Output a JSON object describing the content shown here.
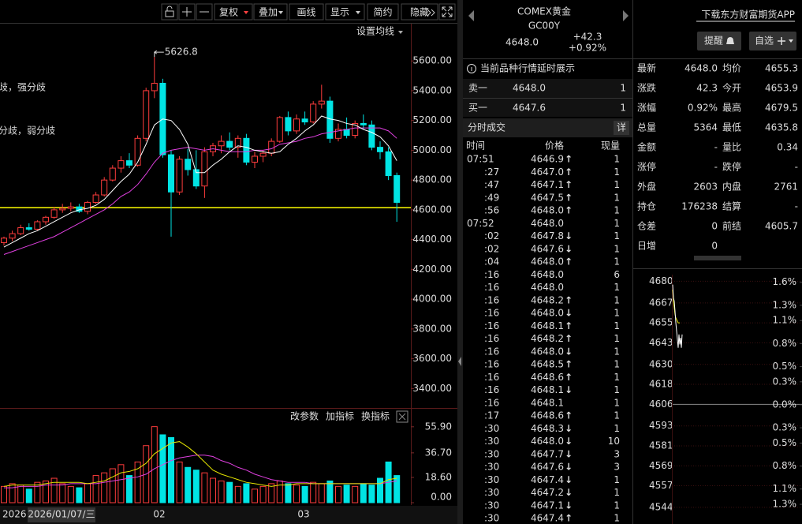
{
  "toolbar": [
    "复权",
    "叠加",
    "画线",
    "显示",
    "简约",
    "隐藏"
  ],
  "kline": {
    "ma_setting": "设置均线",
    "annotations": [
      "歧，强分歧",
      "分歧，弱分歧"
    ],
    "peak_label": 5626.8,
    "ylim": [
      3280,
      5850
    ],
    "yticks": [
      {
        "value": 5600,
        "label": "5600.00"
      },
      {
        "value": 5400,
        "label": "5400.00"
      },
      {
        "value": 5200,
        "label": "5200.00"
      },
      {
        "value": 5000,
        "label": "5000.00"
      },
      {
        "value": 4800,
        "label": "4800.00"
      },
      {
        "value": 4600,
        "label": "4600.00"
      },
      {
        "value": 4400,
        "label": "4400.00"
      },
      {
        "value": 4200,
        "label": "4200.00"
      },
      {
        "value": 4000,
        "label": "4000.00"
      },
      {
        "value": 3800,
        "label": "3800.00"
      },
      {
        "value": 3600,
        "label": "3600.00"
      },
      {
        "value": 3400,
        "label": "3400.00"
      }
    ],
    "ref_line": 4615,
    "up_color": "#ff3c3c",
    "down_color": "#00e4e4",
    "candles": [
      {
        "o": 4380,
        "h": 4420,
        "l": 4360,
        "c": 4410
      },
      {
        "o": 4410,
        "h": 4460,
        "l": 4390,
        "c": 4440
      },
      {
        "o": 4440,
        "h": 4500,
        "l": 4430,
        "c": 4480
      },
      {
        "o": 4480,
        "h": 4510,
        "l": 4460,
        "c": 4470
      },
      {
        "o": 4470,
        "h": 4530,
        "l": 4460,
        "c": 4520
      },
      {
        "o": 4520,
        "h": 4560,
        "l": 4500,
        "c": 4550
      },
      {
        "o": 4550,
        "h": 4620,
        "l": 4540,
        "c": 4600
      },
      {
        "o": 4600,
        "h": 4640,
        "l": 4580,
        "c": 4610
      },
      {
        "o": 4610,
        "h": 4650,
        "l": 4590,
        "c": 4620
      },
      {
        "o": 4620,
        "h": 4640,
        "l": 4580,
        "c": 4590
      },
      {
        "o": 4590,
        "h": 4660,
        "l": 4570,
        "c": 4650
      },
      {
        "o": 4650,
        "h": 4720,
        "l": 4640,
        "c": 4700
      },
      {
        "o": 4700,
        "h": 4820,
        "l": 4690,
        "c": 4800
      },
      {
        "o": 4800,
        "h": 4900,
        "l": 4790,
        "c": 4880
      },
      {
        "o": 4880,
        "h": 4960,
        "l": 4850,
        "c": 4930
      },
      {
        "o": 4930,
        "h": 4980,
        "l": 4880,
        "c": 4900
      },
      {
        "o": 4900,
        "h": 5100,
        "l": 4890,
        "c": 5080
      },
      {
        "o": 5080,
        "h": 5420,
        "l": 5060,
        "c": 5400
      },
      {
        "o": 5400,
        "h": 5626.8,
        "l": 5350,
        "c": 5450
      },
      {
        "o": 5450,
        "h": 5480,
        "l": 4950,
        "c": 4970
      },
      {
        "o": 4970,
        "h": 5000,
        "l": 4420,
        "c": 4720
      },
      {
        "o": 4720,
        "h": 4960,
        "l": 4700,
        "c": 4940
      },
      {
        "o": 4940,
        "h": 5010,
        "l": 4830,
        "c": 4870
      },
      {
        "o": 4870,
        "h": 5000,
        "l": 4740,
        "c": 4760
      },
      {
        "o": 4760,
        "h": 5020,
        "l": 4680,
        "c": 4990
      },
      {
        "o": 4990,
        "h": 5050,
        "l": 4960,
        "c": 5030
      },
      {
        "o": 5030,
        "h": 5100,
        "l": 4980,
        "c": 5060
      },
      {
        "o": 5060,
        "h": 5120,
        "l": 5000,
        "c": 5020
      },
      {
        "o": 5020,
        "h": 5100,
        "l": 4950,
        "c": 5080
      },
      {
        "o": 5080,
        "h": 5110,
        "l": 4900,
        "c": 4920
      },
      {
        "o": 4920,
        "h": 4990,
        "l": 4880,
        "c": 4960
      },
      {
        "o": 4960,
        "h": 5000,
        "l": 4920,
        "c": 4980
      },
      {
        "o": 4980,
        "h": 5080,
        "l": 4960,
        "c": 5060
      },
      {
        "o": 5060,
        "h": 5230,
        "l": 5050,
        "c": 5220
      },
      {
        "o": 5220,
        "h": 5260,
        "l": 5100,
        "c": 5130
      },
      {
        "o": 5130,
        "h": 5240,
        "l": 5110,
        "c": 5210
      },
      {
        "o": 5210,
        "h": 5260,
        "l": 5170,
        "c": 5190
      },
      {
        "o": 5190,
        "h": 5330,
        "l": 5180,
        "c": 5310
      },
      {
        "o": 5310,
        "h": 5440,
        "l": 5280,
        "c": 5330
      },
      {
        "o": 5330,
        "h": 5360,
        "l": 5050,
        "c": 5080
      },
      {
        "o": 5080,
        "h": 5180,
        "l": 5060,
        "c": 5140
      },
      {
        "o": 5140,
        "h": 5220,
        "l": 5080,
        "c": 5100
      },
      {
        "o": 5100,
        "h": 5200,
        "l": 5080,
        "c": 5180
      },
      {
        "o": 5180,
        "h": 5240,
        "l": 5140,
        "c": 5170
      },
      {
        "o": 5170,
        "h": 5200,
        "l": 5000,
        "c": 5020
      },
      {
        "o": 5020,
        "h": 5060,
        "l": 4940,
        "c": 4990
      },
      {
        "o": 4990,
        "h": 5020,
        "l": 4800,
        "c": 4830
      },
      {
        "o": 4830,
        "h": 4850,
        "l": 4520,
        "c": 4650
      }
    ],
    "ma5": [
      4350,
      4380,
      4410,
      4440,
      4460,
      4490,
      4520,
      4550,
      4580,
      4600,
      4610,
      4630,
      4670,
      4730,
      4790,
      4840,
      4920,
      5040,
      5170,
      5210,
      5200,
      5140,
      5040,
      4850,
      4850,
      4900,
      4940,
      4990,
      5030,
      5020,
      5000,
      4990,
      4980,
      4990,
      5040,
      5080,
      5130,
      5170,
      5230,
      5210,
      5200,
      5180,
      5170,
      5140,
      5120,
      5090,
      5030,
      4930
    ],
    "ma10": [
      4300,
      4320,
      4340,
      4360,
      4380,
      4400,
      4420,
      4450,
      4480,
      4510,
      4540,
      4570,
      4600,
      4640,
      4690,
      4720,
      4770,
      4840,
      4920,
      4980,
      5000,
      5010,
      5020,
      5010,
      5000,
      5010,
      5000,
      4990,
      4990,
      4990,
      5000,
      5000,
      5010,
      5040,
      5050,
      5060,
      5080,
      5090,
      5110,
      5120,
      5130,
      5140,
      5150,
      5150,
      5150,
      5150,
      5130,
      5080
    ],
    "ma5_color": "#ffffff",
    "ma10_color": "#e040e0"
  },
  "volume": {
    "tools": [
      "改参数",
      "加指标",
      "换指标"
    ],
    "ylim": [
      0,
      68
    ],
    "yticks": [
      {
        "value": 55.9,
        "label": "55.90"
      },
      {
        "value": 36.7,
        "label": "36.70"
      },
      {
        "value": 18.6,
        "label": "18.60"
      },
      {
        "value": 0,
        "label": "0.00"
      }
    ],
    "values": [
      12,
      14,
      13,
      10,
      15,
      16,
      18,
      14,
      12,
      11,
      14,
      20,
      22,
      25,
      28,
      20,
      30,
      42,
      56,
      50,
      48,
      30,
      26,
      24,
      22,
      18,
      16,
      15,
      12,
      14,
      10,
      12,
      14,
      16,
      14,
      13,
      12,
      15,
      14,
      16,
      12,
      13,
      12,
      14,
      13,
      18,
      30,
      20
    ],
    "ma5": [
      12,
      13,
      13,
      13,
      13,
      14,
      15,
      15,
      15,
      15,
      14,
      15,
      16,
      19,
      22,
      23,
      25,
      29,
      36,
      40,
      44,
      45,
      41,
      36,
      30,
      24,
      21,
      19,
      17,
      15,
      14,
      13,
      12,
      13,
      13,
      14,
      14,
      14,
      14,
      14,
      14,
      14,
      14,
      14,
      14,
      14,
      17,
      18
    ],
    "ma10": [
      11,
      11,
      12,
      12,
      12,
      13,
      13,
      13,
      14,
      14,
      14,
      14,
      15,
      16,
      17,
      18,
      19,
      21,
      25,
      28,
      31,
      33,
      34,
      35,
      35,
      34,
      31,
      29,
      26,
      24,
      21,
      19,
      17,
      16,
      15,
      15,
      15,
      14,
      14,
      14,
      14,
      14,
      14,
      14,
      14,
      14,
      15,
      16
    ],
    "ma5_color": "#e6e600",
    "ma10_color": "#e040e0"
  },
  "x_labels": [
    "2026",
    "2026/01/07/三",
    "02",
    "03"
  ],
  "quote": {
    "name": "COMEX黄金",
    "code": "GC00Y",
    "price": "4648.0",
    "change": "+42.3",
    "pct": "+0.92%",
    "notice": "当前品种行情延时展示",
    "ask_label": "卖一",
    "ask": "4648.0",
    "ask_vol": 1,
    "bid_label": "买一",
    "bid": "4647.6",
    "bid_vol": 1
  },
  "trades": {
    "title": "分时成交",
    "detail": "详",
    "columns": [
      "时间",
      "价格",
      "现量"
    ],
    "rows": [
      {
        "time": "07:51",
        "price": "4646.9",
        "arrow": "↑",
        "vol": 1
      },
      {
        "time": ":27",
        "price": "4647.0",
        "arrow": "↑",
        "vol": 1
      },
      {
        "time": ":47",
        "price": "4647.1",
        "arrow": "↑",
        "vol": 1
      },
      {
        "time": ":49",
        "price": "4647.5",
        "arrow": "↑",
        "vol": 1
      },
      {
        "time": ":56",
        "price": "4648.0",
        "arrow": "↑",
        "vol": 1
      },
      {
        "time": "07:52",
        "price": "4648.0",
        "vol": 1
      },
      {
        "time": ":02",
        "price": "4647.8",
        "arrow": "↓",
        "vol": 1
      },
      {
        "time": ":02",
        "price": "4647.6",
        "arrow": "↓",
        "vol": 1
      },
      {
        "time": ":04",
        "price": "4648.0",
        "arrow": "↑",
        "vol": 1
      },
      {
        "time": ":16",
        "price": "4648.0",
        "vol": 6
      },
      {
        "time": ":16",
        "price": "4648.0",
        "vol": 1
      },
      {
        "time": ":16",
        "price": "4648.2",
        "arrow": "↑",
        "vol": 1
      },
      {
        "time": ":16",
        "price": "4648.0",
        "arrow": "↓",
        "vol": 1
      },
      {
        "time": ":16",
        "price": "4648.1",
        "arrow": "↑",
        "vol": 1
      },
      {
        "time": ":16",
        "price": "4648.2",
        "arrow": "↑",
        "vol": 1
      },
      {
        "time": ":16",
        "price": "4648.0",
        "arrow": "↓",
        "vol": 1
      },
      {
        "time": ":16",
        "price": "4648.5",
        "arrow": "↑",
        "vol": 1
      },
      {
        "time": ":16",
        "price": "4648.6",
        "arrow": "↑",
        "vol": 1
      },
      {
        "time": ":16",
        "price": "4648.1",
        "arrow": "↓",
        "vol": 1
      },
      {
        "time": ":16",
        "price": "4648.1",
        "vol": 1
      },
      {
        "time": ":17",
        "price": "4648.6",
        "arrow": "↑",
        "vol": 1
      },
      {
        "time": ":30",
        "price": "4648.3",
        "arrow": "↓",
        "vol": 1
      },
      {
        "time": ":30",
        "price": "4648.0",
        "arrow": "↓",
        "vol": 10
      },
      {
        "time": ":30",
        "price": "4647.7",
        "arrow": "↓",
        "vol": 3
      },
      {
        "time": ":30",
        "price": "4647.6",
        "arrow": "↓",
        "vol": 3
      },
      {
        "time": ":30",
        "price": "4647.4",
        "arrow": "↓",
        "vol": 1
      },
      {
        "time": ":30",
        "price": "4647.2",
        "arrow": "↓",
        "vol": 1
      },
      {
        "time": ":30",
        "price": "4647.1",
        "arrow": "↓",
        "vol": 1
      },
      {
        "time": ":30",
        "price": "4647.4",
        "arrow": "↑",
        "vol": 1
      }
    ]
  },
  "side": {
    "app_link": "下载东方财富期货APP",
    "buttons": [
      "提醒",
      "自选"
    ],
    "stats": [
      {
        "label": "最新",
        "value": "4648.0",
        "color": "#ff4040"
      },
      {
        "label": "均价",
        "value": "4655.3",
        "color": "#ff4040"
      },
      {
        "label": "涨跌",
        "value": "42.3",
        "color": "#ff4040"
      },
      {
        "label": "今开",
        "value": "4653.9",
        "color": "#ff4040"
      },
      {
        "label": "涨幅",
        "value": "0.92%",
        "color": "#ff4040"
      },
      {
        "label": "最高",
        "value": "4679.5",
        "color": "#ff4040"
      },
      {
        "label": "总量",
        "value": "5364",
        "color": "#ffffff"
      },
      {
        "label": "最低",
        "value": "4635.8",
        "color": "#ff4040"
      },
      {
        "label": "金额",
        "value": "-",
        "color": "#00d8d8"
      },
      {
        "label": "量比",
        "value": "0.34",
        "color": "#00e000"
      },
      {
        "label": "涨停",
        "value": "-",
        "color": "#ff4040"
      },
      {
        "label": "跌停",
        "value": "-",
        "color": "#00e000"
      },
      {
        "label": "外盘",
        "value": "2603",
        "color": "#ff4040"
      },
      {
        "label": "内盘",
        "value": "2761",
        "color": "#00e000"
      },
      {
        "label": "持仓",
        "value": "176238",
        "color": "#ffffff"
      },
      {
        "label": "结算",
        "value": "-",
        "color": "#ffffff"
      },
      {
        "label": "仓差",
        "value": "0",
        "color": "#ffffff"
      },
      {
        "label": "前结",
        "value": "4605.7",
        "color": "#ffffff"
      },
      {
        "label": "日增",
        "value": "0",
        "color": "#ffffff"
      }
    ]
  },
  "mini_chart": {
    "ylim": [
      4534,
      4684
    ],
    "yticks": [
      4680,
      4667,
      4655,
      4643,
      4630,
      4618,
      4606,
      4593,
      4581,
      4569,
      4557,
      4544
    ],
    "y2lim": [
      -1.557,
      1.7
    ],
    "y2ticks": [
      {
        "value": 1.6,
        "label": "1.6%"
      },
      {
        "value": 1.3,
        "label": "1.3%"
      },
      {
        "value": 1.1,
        "label": "1.1%"
      },
      {
        "value": 0.8,
        "label": "0.8%"
      },
      {
        "value": 0.5,
        "label": "0.5%"
      },
      {
        "value": 0.3,
        "label": "0.3%"
      },
      {
        "value": 0,
        "label": "0.0%"
      },
      {
        "value": -0.3,
        "label": "0.3%"
      },
      {
        "value": -0.5,
        "label": "0.5%"
      },
      {
        "value": -0.8,
        "label": "0.8%"
      },
      {
        "value": -1.1,
        "label": "1.1%"
      },
      {
        "value": -1.3,
        "label": "1.3%"
      }
    ],
    "price": [
      4678,
      4670,
      4668,
      4662,
      4655,
      4650,
      4645,
      4640,
      4648,
      4642,
      4646,
      4640,
      4648
    ],
    "avg": [
      4675,
      4668,
      4664,
      4660,
      4658,
      4657,
      4656,
      4655,
      4655,
      4655
    ],
    "price_color": "#ffffff",
    "avg_color": "#e6e600"
  }
}
